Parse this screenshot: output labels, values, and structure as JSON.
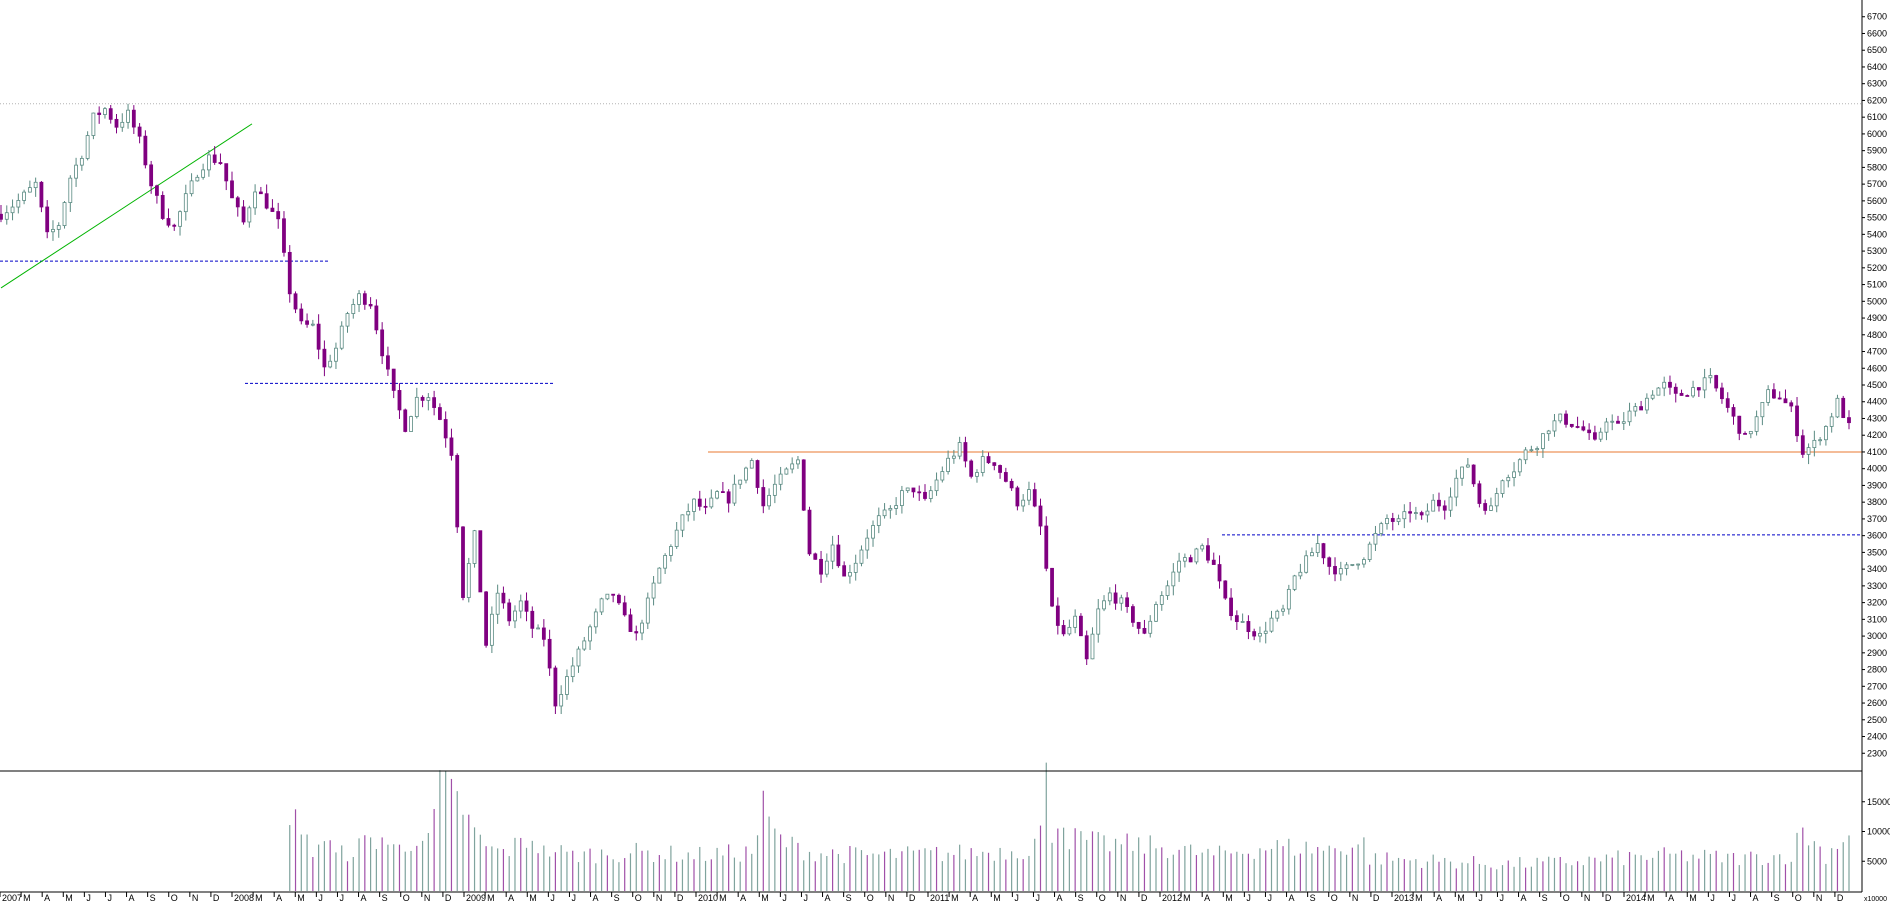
{
  "chart_data": {
    "type": "candlestick",
    "title": "",
    "price_axis": {
      "ylim": [
        2200,
        6800
      ],
      "ticks": [
        2300,
        2400,
        2500,
        2600,
        2700,
        2800,
        2900,
        3000,
        3100,
        3200,
        3300,
        3400,
        3500,
        3600,
        3700,
        3800,
        3900,
        4000,
        4100,
        4200,
        4300,
        4400,
        4500,
        4600,
        4700,
        4800,
        4900,
        5000,
        5100,
        5200,
        5300,
        5400,
        5500,
        5600,
        5700,
        5800,
        5900,
        6000,
        6100,
        6200,
        6300,
        6400,
        6500,
        6600,
        6700
      ]
    },
    "volume_axis": {
      "ylim": [
        0,
        20000
      ],
      "ticks": [
        5000,
        10000,
        15000
      ],
      "unit_label": "x10000"
    },
    "x_axis": {
      "labels": [
        "2007",
        "M",
        "A",
        "M",
        "J",
        "J",
        "A",
        "S",
        "O",
        "N",
        "D",
        "2008",
        "M",
        "A",
        "M",
        "J",
        "J",
        "A",
        "S",
        "O",
        "N",
        "D",
        "2009",
        "M",
        "A",
        "M",
        "J",
        "J",
        "A",
        "S",
        "O",
        "N",
        "D",
        "2010",
        "M",
        "A",
        "M",
        "J",
        "J",
        "A",
        "S",
        "O",
        "N",
        "D",
        "2011",
        "M",
        "A",
        "M",
        "J",
        "J",
        "A",
        "S",
        "O",
        "N",
        "D",
        "2012",
        "M",
        "A",
        "M",
        "J",
        "J",
        "A",
        "S",
        "O",
        "N",
        "D",
        "2013",
        "M",
        "A",
        "M",
        "J",
        "J",
        "A",
        "S",
        "O",
        "N",
        "D",
        "2014",
        "M",
        "A",
        "M",
        "J",
        "J",
        "A",
        "S",
        "O",
        "N",
        "D"
      ]
    },
    "price_anchors": [
      [
        0,
        5520
      ],
      [
        3,
        5600
      ],
      [
        6,
        5700
      ],
      [
        8,
        5390
      ],
      [
        10,
        5460
      ],
      [
        12,
        5740
      ],
      [
        14,
        5880
      ],
      [
        16,
        6100
      ],
      [
        18,
        6150
      ],
      [
        20,
        6050
      ],
      [
        22,
        6120
      ],
      [
        24,
        5960
      ],
      [
        26,
        5700
      ],
      [
        28,
        5520
      ],
      [
        30,
        5440
      ],
      [
        32,
        5620
      ],
      [
        34,
        5770
      ],
      [
        36,
        5860
      ],
      [
        38,
        5830
      ],
      [
        40,
        5610
      ],
      [
        42,
        5470
      ],
      [
        44,
        5680
      ],
      [
        46,
        5580
      ],
      [
        48,
        5470
      ],
      [
        50,
        5060
      ],
      [
        52,
        4860
      ],
      [
        54,
        4850
      ],
      [
        56,
        4600
      ],
      [
        58,
        4720
      ],
      [
        60,
        4930
      ],
      [
        62,
        5030
      ],
      [
        64,
        4990
      ],
      [
        66,
        4700
      ],
      [
        68,
        4440
      ],
      [
        70,
        4250
      ],
      [
        72,
        4420
      ],
      [
        74,
        4440
      ],
      [
        76,
        4300
      ],
      [
        78,
        4100
      ],
      [
        80,
        3250
      ],
      [
        82,
        3600
      ],
      [
        84,
        2950
      ],
      [
        86,
        3260
      ],
      [
        88,
        3100
      ],
      [
        90,
        3200
      ],
      [
        92,
        3050
      ],
      [
        94,
        2990
      ],
      [
        96,
        2600
      ],
      [
        98,
        2750
      ],
      [
        100,
        2900
      ],
      [
        102,
        3050
      ],
      [
        104,
        3200
      ],
      [
        106,
        3250
      ],
      [
        108,
        3100
      ],
      [
        110,
        3000
      ],
      [
        112,
        3200
      ],
      [
        114,
        3400
      ],
      [
        116,
        3550
      ],
      [
        118,
        3700
      ],
      [
        120,
        3800
      ],
      [
        122,
        3750
      ],
      [
        124,
        3850
      ],
      [
        126,
        3820
      ],
      [
        128,
        3950
      ],
      [
        130,
        4050
      ],
      [
        132,
        3780
      ],
      [
        134,
        3900
      ],
      [
        136,
        3980
      ],
      [
        138,
        4050
      ],
      [
        140,
        3500
      ],
      [
        142,
        3400
      ],
      [
        144,
        3550
      ],
      [
        146,
        3350
      ],
      [
        148,
        3450
      ],
      [
        150,
        3600
      ],
      [
        152,
        3700
      ],
      [
        154,
        3750
      ],
      [
        156,
        3850
      ],
      [
        158,
        3880
      ],
      [
        160,
        3800
      ],
      [
        162,
        3930
      ],
      [
        164,
        4050
      ],
      [
        166,
        4130
      ],
      [
        168,
        3950
      ],
      [
        170,
        4050
      ],
      [
        172,
        4040
      ],
      [
        174,
        3930
      ],
      [
        176,
        3800
      ],
      [
        178,
        3860
      ],
      [
        180,
        3650
      ],
      [
        182,
        3150
      ],
      [
        184,
        3000
      ],
      [
        186,
        3100
      ],
      [
        188,
        2850
      ],
      [
        190,
        3150
      ],
      [
        192,
        3250
      ],
      [
        194,
        3200
      ],
      [
        196,
        3100
      ],
      [
        198,
        3000
      ],
      [
        200,
        3200
      ],
      [
        202,
        3300
      ],
      [
        204,
        3450
      ],
      [
        206,
        3470
      ],
      [
        208,
        3530
      ],
      [
        210,
        3420
      ],
      [
        212,
        3200
      ],
      [
        214,
        3100
      ],
      [
        216,
        3050
      ],
      [
        218,
        3000
      ],
      [
        220,
        3100
      ],
      [
        222,
        3150
      ],
      [
        224,
        3350
      ],
      [
        226,
        3450
      ],
      [
        228,
        3550
      ],
      [
        230,
        3420
      ],
      [
        232,
        3380
      ],
      [
        234,
        3430
      ],
      [
        236,
        3480
      ],
      [
        238,
        3600
      ],
      [
        240,
        3700
      ],
      [
        242,
        3680
      ],
      [
        244,
        3750
      ],
      [
        246,
        3700
      ],
      [
        248,
        3800
      ],
      [
        250,
        3780
      ],
      [
        252,
        3940
      ],
      [
        254,
        4030
      ],
      [
        256,
        3800
      ],
      [
        258,
        3760
      ],
      [
        260,
        3950
      ],
      [
        262,
        4000
      ],
      [
        264,
        4100
      ],
      [
        266,
        4150
      ],
      [
        268,
        4250
      ],
      [
        270,
        4300
      ],
      [
        272,
        4270
      ],
      [
        274,
        4230
      ],
      [
        276,
        4150
      ],
      [
        278,
        4300
      ],
      [
        280,
        4250
      ],
      [
        282,
        4330
      ],
      [
        284,
        4380
      ],
      [
        286,
        4460
      ],
      [
        288,
        4500
      ],
      [
        290,
        4430
      ],
      [
        292,
        4460
      ],
      [
        294,
        4500
      ],
      [
        296,
        4530
      ],
      [
        298,
        4420
      ],
      [
        300,
        4300
      ],
      [
        302,
        4180
      ],
      [
        304,
        4300
      ],
      [
        306,
        4450
      ],
      [
        308,
        4430
      ],
      [
        310,
        4350
      ],
      [
        312,
        4100
      ],
      [
        314,
        4150
      ],
      [
        316,
        4250
      ],
      [
        318,
        4400
      ],
      [
        320,
        4250
      ]
    ],
    "volume_anchors": [
      [
        0,
        0
      ],
      [
        49,
        0
      ],
      [
        50,
        9500
      ],
      [
        51,
        17500
      ],
      [
        52,
        9000
      ],
      [
        54,
        7000
      ],
      [
        56,
        9000
      ],
      [
        58,
        6000
      ],
      [
        60,
        6500
      ],
      [
        62,
        7500
      ],
      [
        64,
        8500
      ],
      [
        66,
        9000
      ],
      [
        68,
        7000
      ],
      [
        70,
        7500
      ],
      [
        72,
        9500
      ],
      [
        74,
        8000
      ],
      [
        76,
        17500
      ],
      [
        78,
        16000
      ],
      [
        80,
        14000
      ],
      [
        82,
        9500
      ],
      [
        84,
        7500
      ],
      [
        86,
        6500
      ],
      [
        88,
        7000
      ],
      [
        90,
        8000
      ],
      [
        92,
        9000
      ],
      [
        94,
        6500
      ],
      [
        96,
        7000
      ],
      [
        98,
        6000
      ],
      [
        110,
        6500
      ],
      [
        120,
        6000
      ],
      [
        130,
        6500
      ],
      [
        131,
        10000
      ],
      [
        132,
        14000
      ],
      [
        134,
        9500
      ],
      [
        136,
        8000
      ],
      [
        140,
        6500
      ],
      [
        150,
        6000
      ],
      [
        160,
        6200
      ],
      [
        170,
        6500
      ],
      [
        178,
        7000
      ],
      [
        180,
        10000
      ],
      [
        181,
        18500
      ],
      [
        182,
        9500
      ],
      [
        183,
        13500
      ],
      [
        185,
        9000
      ],
      [
        190,
        8000
      ],
      [
        200,
        7500
      ],
      [
        210,
        6000
      ],
      [
        220,
        7500
      ],
      [
        230,
        7000
      ],
      [
        236,
        8000
      ],
      [
        237,
        5500
      ],
      [
        250,
        5000
      ],
      [
        260,
        4500
      ],
      [
        270,
        4800
      ],
      [
        280,
        5500
      ],
      [
        290,
        6000
      ],
      [
        300,
        5500
      ],
      [
        310,
        6000
      ],
      [
        312,
        10500
      ],
      [
        314,
        8000
      ],
      [
        316,
        6000
      ],
      [
        320,
        10000
      ]
    ],
    "horizontal_levels": [
      {
        "value": 6180,
        "style": "dotted",
        "color": "#b4b4b4"
      },
      {
        "value": 5240,
        "style": "dashed",
        "color": "#0000c8"
      },
      {
        "value": 4510,
        "style": "dashed",
        "color": "#0000c8"
      },
      {
        "value": 4100,
        "style": "solid",
        "color": "#e87830"
      },
      {
        "value": 3605,
        "style": "dashed",
        "color": "#0000c8"
      }
    ],
    "trendline": {
      "color": "#00b400",
      "from": [
        0,
        5080
      ],
      "to": [
        40,
        6060
      ]
    },
    "colors": {
      "bull_candle": "#5a8a82",
      "bear_candle": "#800080",
      "volume_bull": "#7fa39d",
      "volume_bear": "#a050a8",
      "axis": "#000000"
    }
  }
}
